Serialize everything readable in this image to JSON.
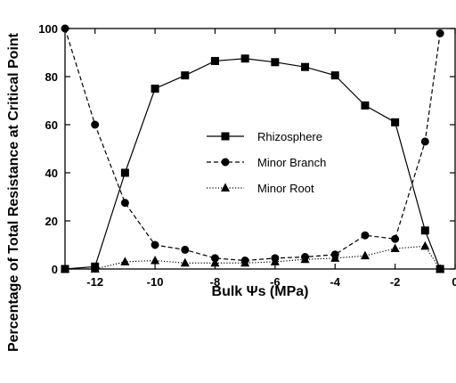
{
  "chart_data": {
    "type": "line",
    "xlabel": "Bulk Ψs (MPa)",
    "ylabel": "Percentage of Total Resistance at Critical Point",
    "xlim": [
      -13,
      0
    ],
    "ylim": [
      0,
      100
    ],
    "x_ticks": [
      -12,
      -10,
      -8,
      -6,
      -4,
      -2,
      0
    ],
    "y_ticks": [
      0,
      20,
      40,
      60,
      80,
      100
    ],
    "grid": false,
    "legend_position": "center-right",
    "series": [
      {
        "name": "Rhizosphere",
        "line_style": "solid",
        "marker": "square",
        "points": [
          [
            -13,
            0
          ],
          [
            -12,
            1
          ],
          [
            -11,
            40
          ],
          [
            -10,
            75
          ],
          [
            -9,
            80.5
          ],
          [
            -8,
            86.5
          ],
          [
            -7,
            87.5
          ],
          [
            -6,
            86
          ],
          [
            -5,
            84
          ],
          [
            -4,
            80.5
          ],
          [
            -3,
            68
          ],
          [
            -2,
            61
          ],
          [
            -1,
            16
          ],
          [
            -0.5,
            0
          ]
        ]
      },
      {
        "name": "Minor Branch",
        "line_style": "dashed",
        "marker": "circle",
        "points": [
          [
            -13,
            100
          ],
          [
            -12,
            60
          ],
          [
            -11,
            27.5
          ],
          [
            -10,
            10
          ],
          [
            -9,
            8
          ],
          [
            -8,
            4.5
          ],
          [
            -7,
            3.5
          ],
          [
            -6,
            4.5
          ],
          [
            -5,
            5
          ],
          [
            -4,
            6
          ],
          [
            -3,
            14
          ],
          [
            -2,
            12.5
          ],
          [
            -1,
            53
          ],
          [
            -0.5,
            98
          ]
        ]
      },
      {
        "name": "Minor Root",
        "line_style": "dotted",
        "marker": "triangle",
        "points": [
          [
            -13,
            0
          ],
          [
            -12,
            0
          ],
          [
            -11,
            3
          ],
          [
            -10,
            3.5
          ],
          [
            -9,
            2.5
          ],
          [
            -8,
            2.5
          ],
          [
            -7,
            2.5
          ],
          [
            -6,
            3
          ],
          [
            -5,
            4
          ],
          [
            -4,
            4.5
          ],
          [
            -3,
            5.5
          ],
          [
            -2,
            8.5
          ],
          [
            -1,
            9.5
          ],
          [
            -0.5,
            0
          ]
        ]
      }
    ]
  }
}
